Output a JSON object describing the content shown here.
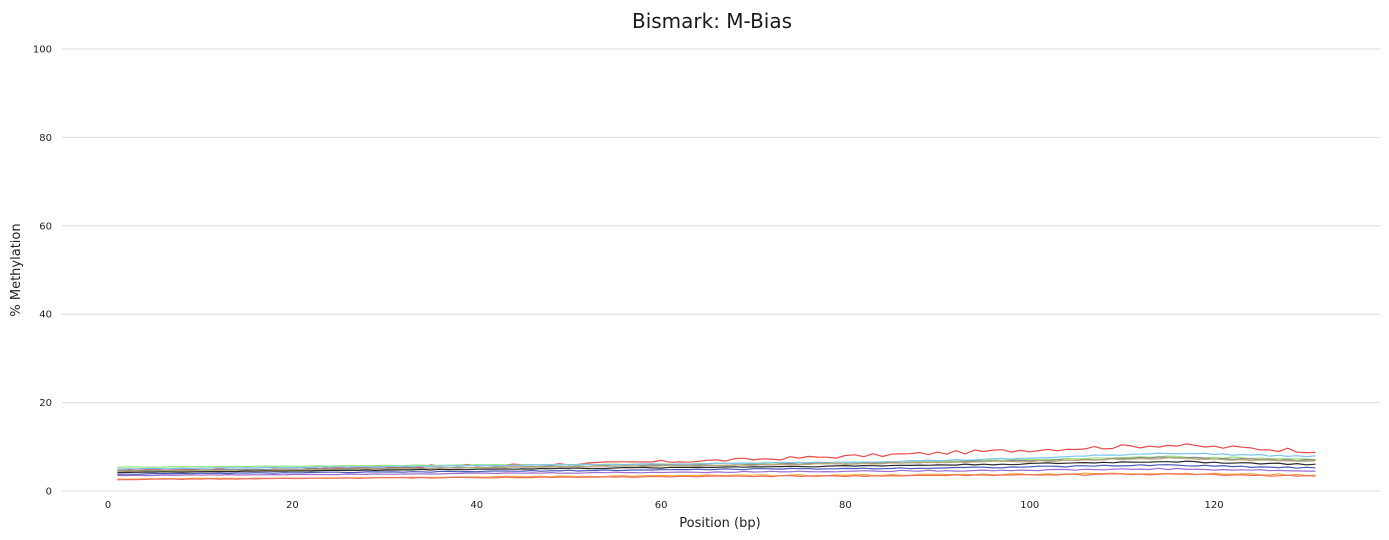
{
  "chart_data": {
    "type": "line",
    "title": "Bismark: M-Bias",
    "xlabel": "Position (bp)",
    "ylabel": "% Methylation",
    "xlim": [
      -5,
      138
    ],
    "ylim": [
      0,
      100
    ],
    "xticks": [
      0,
      20,
      40,
      60,
      80,
      100,
      120
    ],
    "yticks": [
      0,
      20,
      40,
      60,
      80,
      100
    ],
    "grid": "horizontal",
    "x": {
      "start": 1,
      "end": 131
    },
    "series": [
      {
        "color": "#e64b4b",
        "values": [
          4.8,
          4.9,
          5.6,
          6.1,
          6.9,
          8.0,
          9.2,
          10.4,
          9.1
        ]
      },
      {
        "color": "#98e67a",
        "values": [
          5.4,
          5.6,
          5.8,
          6.0,
          6.2,
          6.5,
          7.0,
          7.8,
          7.2
        ]
      },
      {
        "color": "#7cc4f0",
        "values": [
          5.0,
          5.3,
          5.6,
          5.9,
          6.2,
          6.6,
          7.3,
          8.6,
          7.8
        ]
      },
      {
        "color": "#8a8a8a",
        "values": [
          4.6,
          4.9,
          5.2,
          5.6,
          5.9,
          6.3,
          6.8,
          7.6,
          6.9
        ]
      },
      {
        "color": "#b9a878",
        "values": [
          4.4,
          4.7,
          5.1,
          5.5,
          5.8,
          6.2,
          6.7,
          7.4,
          6.7
        ]
      },
      {
        "color": "#2a2a2a",
        "values": [
          4.2,
          4.5,
          4.8,
          5.1,
          5.4,
          5.7,
          6.1,
          6.7,
          6.0
        ]
      },
      {
        "color": "#4a5ab8",
        "values": [
          3.8,
          4.1,
          4.3,
          4.6,
          4.9,
          5.1,
          5.4,
          5.9,
          5.2
        ]
      },
      {
        "color": "#9a6fd0",
        "values": [
          3.5,
          3.7,
          3.9,
          4.1,
          4.3,
          4.5,
          4.7,
          5.0,
          4.5
        ]
      },
      {
        "color": "#f0a830",
        "values": [
          2.7,
          2.9,
          3.1,
          3.3,
          3.5,
          3.6,
          3.8,
          4.0,
          3.6
        ]
      },
      {
        "color": "#f07060",
        "values": [
          2.6,
          2.8,
          3.0,
          3.1,
          3.3,
          3.4,
          3.6,
          3.8,
          3.4
        ]
      }
    ]
  }
}
